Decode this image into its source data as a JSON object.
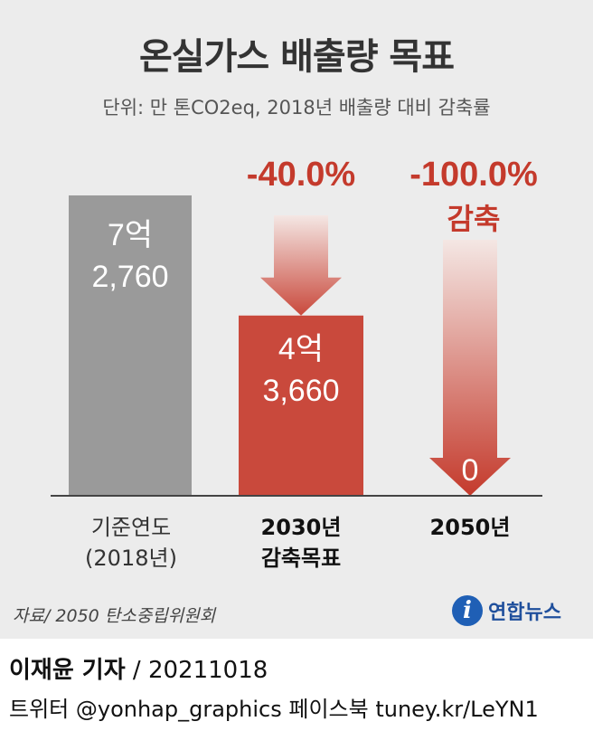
{
  "header": {
    "title": "온실가스 배출량 목표",
    "subtitle": "단위: 만 톤CO2eq, 2018년 배출량 대비 감축률"
  },
  "chart_data": {
    "type": "bar",
    "title": "온실가스 배출량 목표",
    "subtitle": "단위: 만 톤CO2eq, 2018년 배출량 대비 감축률",
    "unit": "만 톤CO2eq",
    "categories": [
      {
        "line1": "기준연도",
        "line2": "(2018년)"
      },
      {
        "line1": "2030년",
        "line2": "감축목표"
      },
      {
        "line1": "2050년",
        "line2": ""
      }
    ],
    "values": [
      72760,
      43660,
      0
    ],
    "value_labels": [
      {
        "line1": "7억",
        "line2": "2,760"
      },
      {
        "line1": "4억",
        "line2": "3,660"
      },
      {
        "line1": "0",
        "line2": ""
      }
    ],
    "reductions": [
      {
        "category_index": 1,
        "label": "-40.0%",
        "sub": ""
      },
      {
        "category_index": 2,
        "label": "-100.0%",
        "sub": "감축"
      }
    ],
    "colors": {
      "baseline": "#9a9a9a",
      "target": "#c9493c",
      "arrow_top": "#f3e6e3",
      "arrow_bottom": "#c43a2c",
      "reduction_text": "#c43a2c"
    }
  },
  "footer": {
    "source": "자료/ 2050 탄소중립위원회",
    "logo_mark": "i",
    "logo_text": "연합뉴스",
    "reporter_name": "이재윤 기자",
    "reporter_rest": " / 20211018",
    "social": "트위터 @yonhap_graphics  페이스북 tuney.kr/LeYN1"
  }
}
